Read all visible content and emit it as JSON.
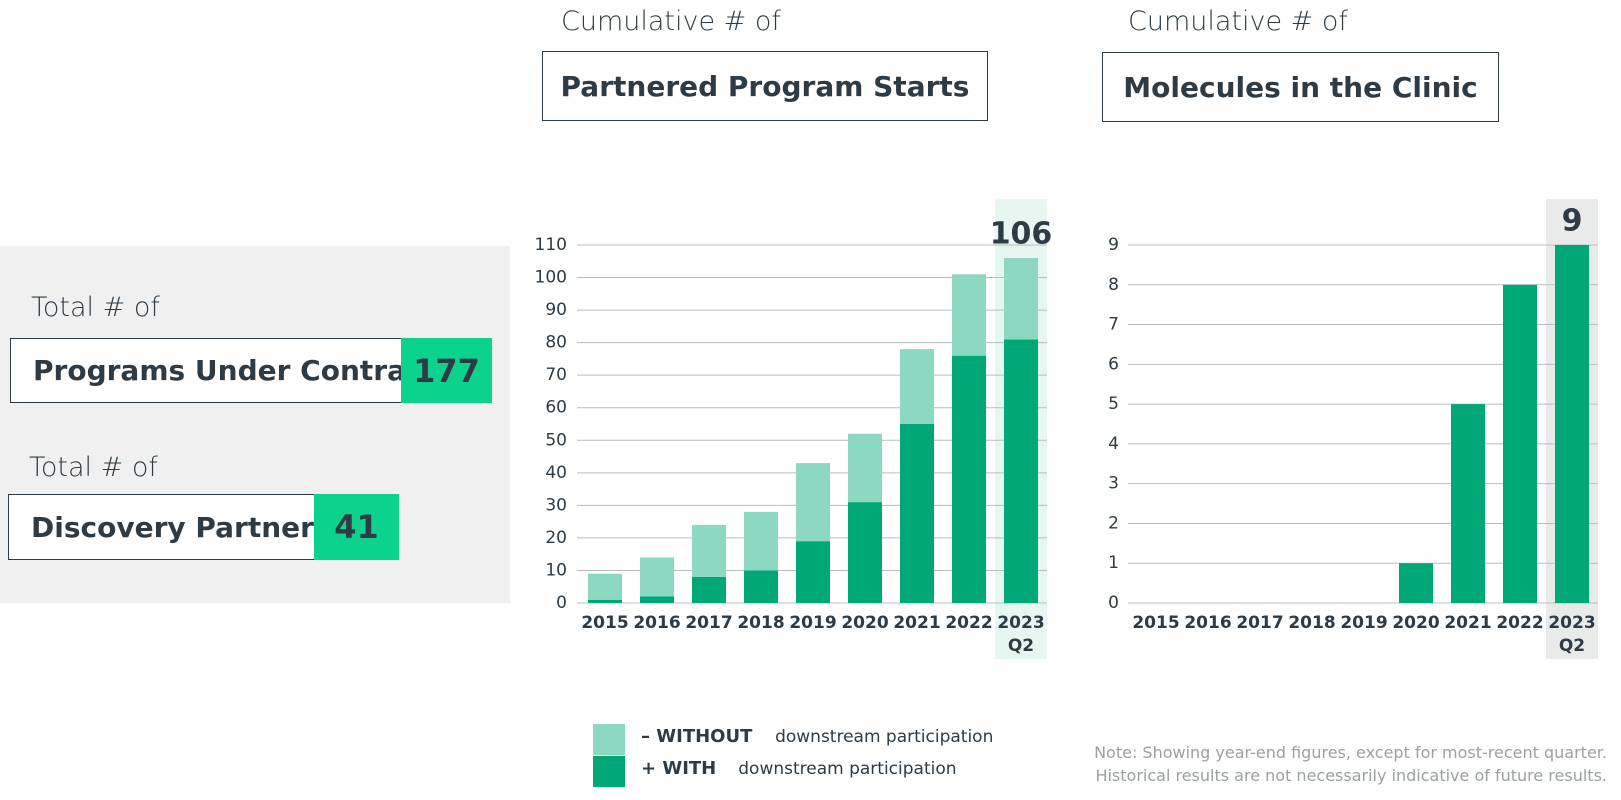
{
  "panel": {
    "items": [
      {
        "caption": "Total # of",
        "label": "Programs Under Contract",
        "value": 177
      },
      {
        "caption": "Total # of",
        "label": "Discovery Partners",
        "value": 41
      }
    ]
  },
  "chart_data": [
    {
      "type": "bar",
      "stacked": true,
      "pretitle": "Cumulative # of",
      "title": "Partnered Program Starts",
      "categories": [
        "2015",
        "2016",
        "2017",
        "2018",
        "2019",
        "2020",
        "2021",
        "2022",
        "2023\nQ2"
      ],
      "series": [
        {
          "name": "+ WITH",
          "color": "#00a878",
          "values": [
            1,
            2,
            8,
            10,
            19,
            31,
            55,
            76,
            81
          ]
        },
        {
          "name": "– WITHOUT",
          "color": "#8dd8c0",
          "values": [
            8,
            12,
            16,
            18,
            24,
            21,
            23,
            25,
            25
          ]
        }
      ],
      "ylim": [
        0,
        110
      ],
      "yticks": [
        0,
        10,
        20,
        30,
        40,
        50,
        60,
        70,
        80,
        90,
        100,
        110
      ],
      "grid": true,
      "highlight_label": "106",
      "highlight_color": "#e6f6f0"
    },
    {
      "type": "bar",
      "pretitle": "Cumulative # of",
      "title": "Molecules in the Clinic",
      "categories": [
        "2015",
        "2016",
        "2017",
        "2018",
        "2019",
        "2020",
        "2021",
        "2022",
        "2023\nQ2"
      ],
      "values": [
        0,
        0,
        0,
        0,
        0,
        1,
        5,
        8,
        9
      ],
      "color": "#00a878",
      "ylim": [
        0,
        9
      ],
      "yticks": [
        0,
        1,
        2,
        3,
        4,
        5,
        6,
        7,
        8,
        9
      ],
      "grid": true,
      "highlight_label": "9",
      "highlight_color": "#e9ebeb"
    }
  ],
  "legend": {
    "suffix": "downstream participation"
  },
  "note": [
    "Note: Showing year-end figures, except for most-recent quarter.",
    "Historical results are not necessarily indicative of future results."
  ]
}
